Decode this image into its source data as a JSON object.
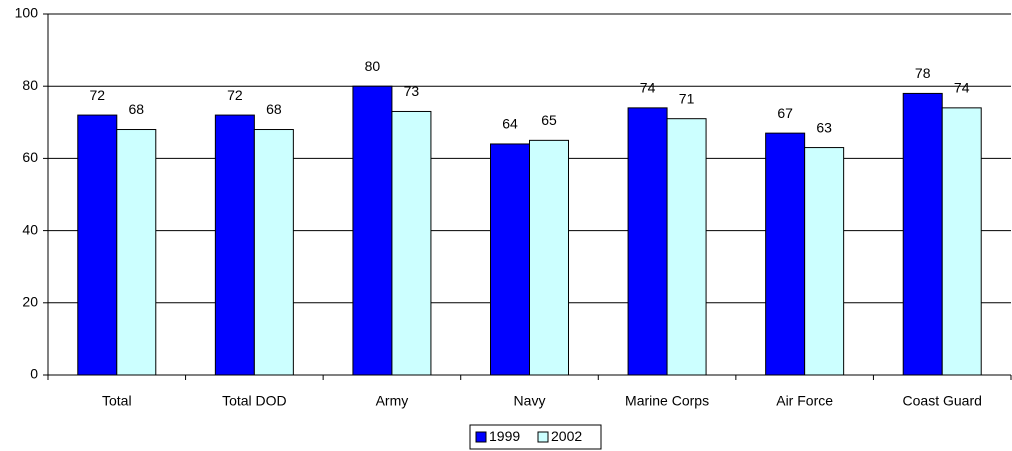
{
  "chart_data": {
    "type": "bar",
    "categories": [
      "Total",
      "Total DOD",
      "Army",
      "Navy",
      "Marine Corps",
      "Air Force",
      "Coast Guard"
    ],
    "series": [
      {
        "name": "1999",
        "color": "#0000ff",
        "values": [
          72,
          72,
          80,
          64,
          74,
          67,
          78
        ]
      },
      {
        "name": "2002",
        "color": "#ccffff",
        "values": [
          68,
          68,
          73,
          65,
          71,
          63,
          74
        ]
      }
    ],
    "ylim": [
      0,
      100
    ],
    "yticks": [
      0,
      20,
      40,
      60,
      80,
      100
    ],
    "grid": true,
    "legend": "bottom"
  }
}
